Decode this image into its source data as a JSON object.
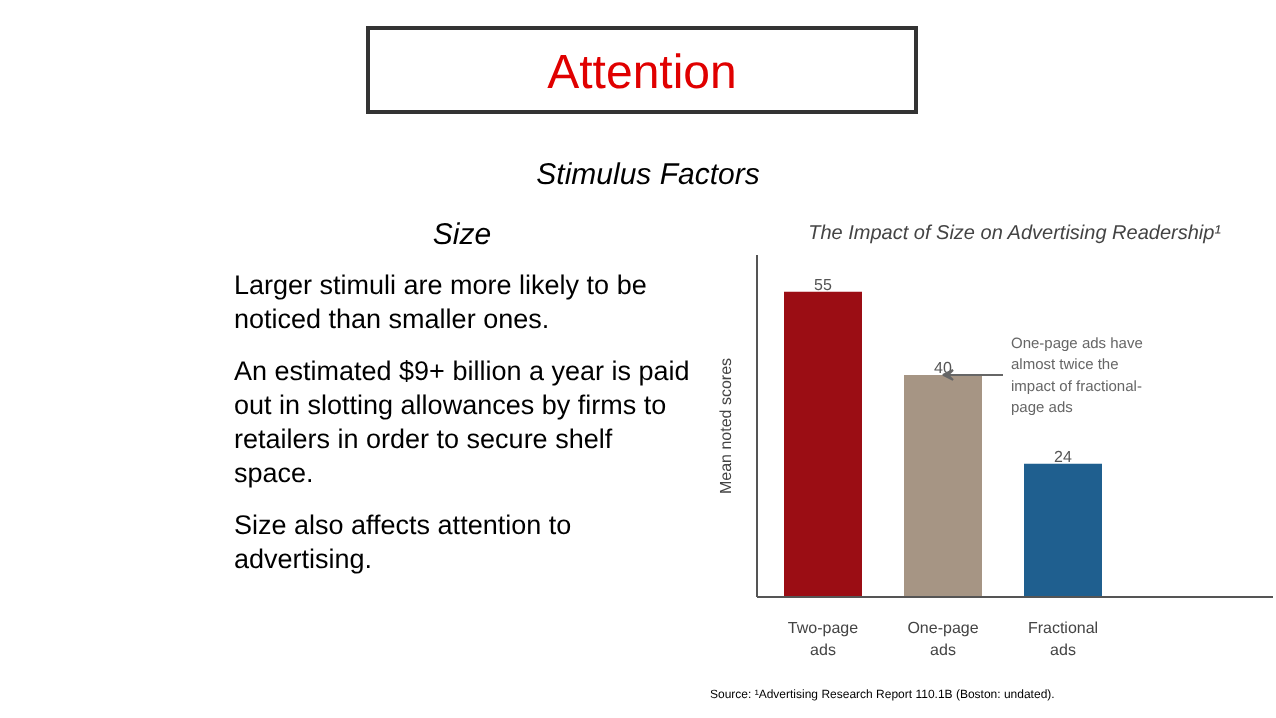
{
  "chart_data": {
    "type": "bar",
    "title": "The Impact of Size on Advertising Readership¹",
    "ylabel": "Mean noted scores",
    "categories": [
      "Two-page ads",
      "One-page ads",
      "Fractional ads"
    ],
    "values": [
      55,
      40,
      24
    ],
    "colors": [
      "#9b0d14",
      "#a69584",
      "#1f5f8f"
    ],
    "data_labels": true,
    "tick_labels": "x",
    "grid": false,
    "annotations": [
      "Attention",
      "Stimulus Factors",
      "Size",
      "Larger stimuli are more likely to be noticed than smaller ones.",
      "An estimated $9+ billion a year is paid out in slotting allowances by firms to retailers in order to secure shelf space.",
      "Size also affects attention to advertising.",
      "Source: ¹Advertising Research Report 110.1B (Boston: undated).",
      {
        "text": "One-page ads have almost twice the impact of fractional-page ads",
        "x": "One-page ads",
        "y": 40
      }
    ]
  }
}
